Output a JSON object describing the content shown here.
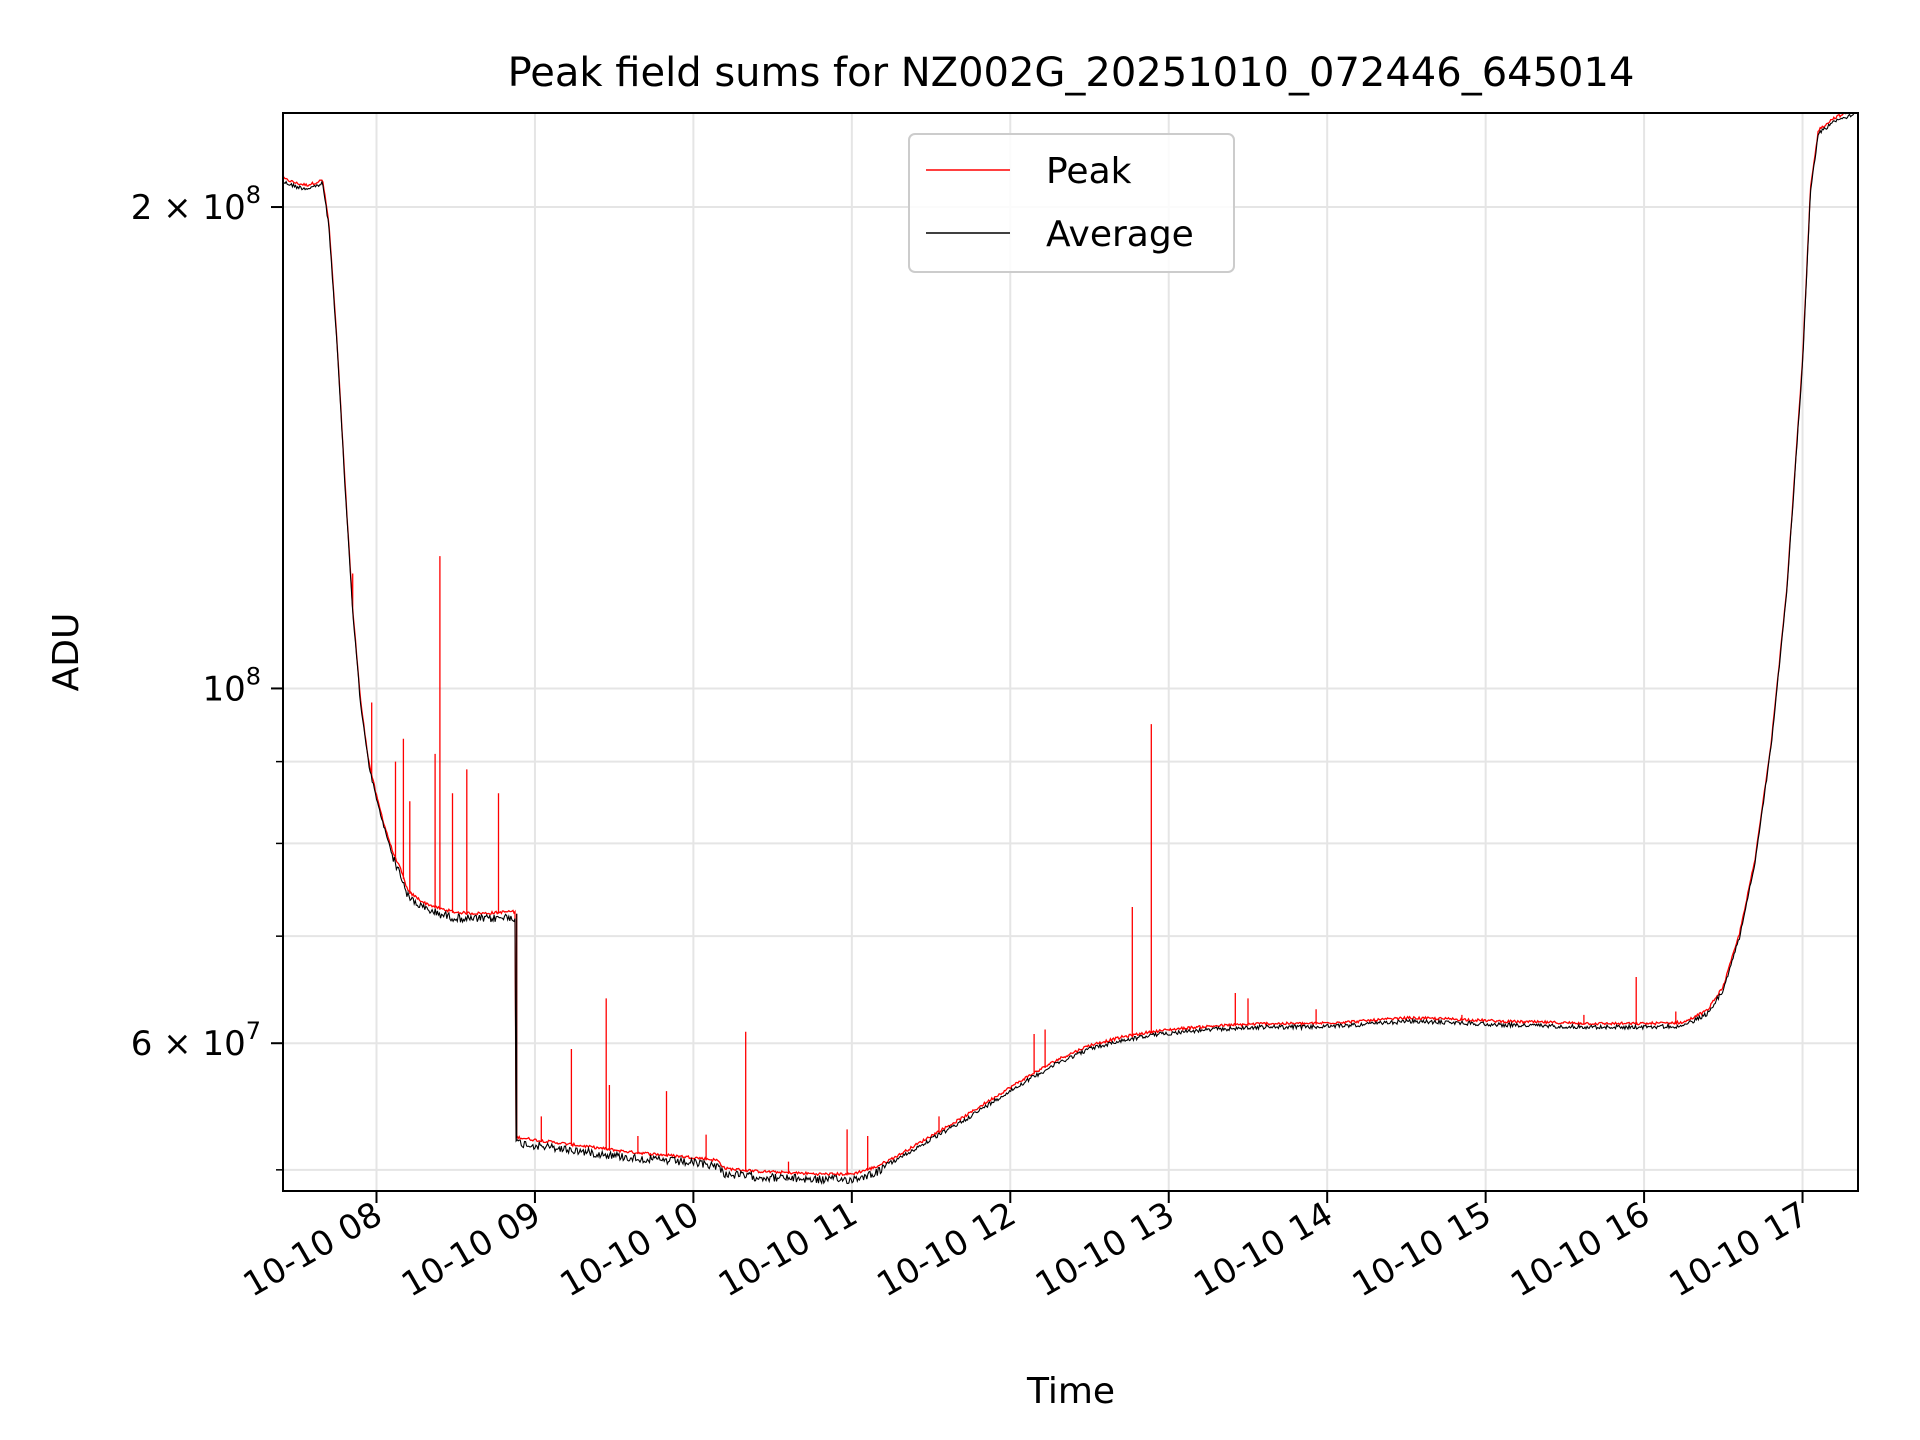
{
  "chart_data": {
    "type": "line",
    "title": "Peak field sums for NZ002G_20251010_072446_645014",
    "xlabel": "Time",
    "ylabel": "ADU",
    "yscale": "log",
    "xlim": [
      7.41,
      17.35
    ],
    "ylim": [
      48500000,
      229000000
    ],
    "grid": true,
    "legend_position": "upper-center",
    "colors": {
      "Peak": "#ff0000",
      "Average": "#000000",
      "grid": "#e5e5e5"
    },
    "x_ticks": [
      {
        "value": 8,
        "label": "10-10 08"
      },
      {
        "value": 9,
        "label": "10-10 09"
      },
      {
        "value": 10,
        "label": "10-10 10"
      },
      {
        "value": 11,
        "label": "10-10 11"
      },
      {
        "value": 12,
        "label": "10-10 12"
      },
      {
        "value": 13,
        "label": "10-10 13"
      },
      {
        "value": 14,
        "label": "10-10 14"
      },
      {
        "value": 15,
        "label": "10-10 15"
      },
      {
        "value": 16,
        "label": "10-10 16"
      },
      {
        "value": 17,
        "label": "10-10 17"
      }
    ],
    "y_major_ticks": [
      {
        "value": 100000000,
        "base": "10",
        "exp": "8",
        "prefix": ""
      },
      {
        "value": 200000000,
        "base": "10",
        "exp": "8",
        "prefix": "2 × "
      },
      {
        "value": 60000000,
        "base": "10",
        "exp": "7",
        "prefix": "6 × "
      }
    ],
    "y_minor_ticks": [
      50000000,
      70000000,
      80000000,
      90000000
    ],
    "baseline_points": [
      [
        7.41,
        208000000
      ],
      [
        7.5,
        206500000
      ],
      [
        7.56,
        206000000
      ],
      [
        7.62,
        206800000
      ],
      [
        7.66,
        207500000
      ],
      [
        7.7,
        195000000
      ],
      [
        7.75,
        165000000
      ],
      [
        7.8,
        135000000
      ],
      [
        7.85,
        112000000
      ],
      [
        7.9,
        98000000
      ],
      [
        7.95,
        90000000
      ],
      [
        8.0,
        85500000
      ],
      [
        8.05,
        82000000
      ],
      [
        8.1,
        79000000
      ],
      [
        8.15,
        77000000
      ],
      [
        8.2,
        74500000
      ],
      [
        8.3,
        73300000
      ],
      [
        8.4,
        72700000
      ],
      [
        8.5,
        72300000
      ],
      [
        8.6,
        72200000
      ],
      [
        8.7,
        72200000
      ],
      [
        8.85,
        72400000
      ],
      [
        8.88,
        72300000
      ],
      [
        8.89,
        52300000
      ],
      [
        9.0,
        52100000
      ],
      [
        9.2,
        51800000
      ],
      [
        9.4,
        51500000
      ],
      [
        9.6,
        51200000
      ],
      [
        9.8,
        51000000
      ],
      [
        10.0,
        50800000
      ],
      [
        10.15,
        50600000
      ],
      [
        10.2,
        50000000
      ],
      [
        10.4,
        49800000
      ],
      [
        10.6,
        49700000
      ],
      [
        10.8,
        49600000
      ],
      [
        11.0,
        49600000
      ],
      [
        11.15,
        50100000
      ],
      [
        11.3,
        51000000
      ],
      [
        11.5,
        52400000
      ],
      [
        11.7,
        53800000
      ],
      [
        11.9,
        55400000
      ],
      [
        12.1,
        57000000
      ],
      [
        12.3,
        58500000
      ],
      [
        12.5,
        59700000
      ],
      [
        12.7,
        60400000
      ],
      [
        12.9,
        60900000
      ],
      [
        13.1,
        61200000
      ],
      [
        13.3,
        61400000
      ],
      [
        13.6,
        61600000
      ],
      [
        13.9,
        61600000
      ],
      [
        14.2,
        61800000
      ],
      [
        14.5,
        62100000
      ],
      [
        14.8,
        62000000
      ],
      [
        15.1,
        61800000
      ],
      [
        15.4,
        61700000
      ],
      [
        15.7,
        61600000
      ],
      [
        16.0,
        61600000
      ],
      [
        16.25,
        61700000
      ],
      [
        16.4,
        62800000
      ],
      [
        16.5,
        65000000
      ],
      [
        16.6,
        70000000
      ],
      [
        16.7,
        78000000
      ],
      [
        16.8,
        92000000
      ],
      [
        16.9,
        115000000
      ],
      [
        17.0,
        160000000
      ],
      [
        17.05,
        205000000
      ],
      [
        17.1,
        223000000
      ],
      [
        17.2,
        227000000
      ],
      [
        17.3,
        229000000
      ],
      [
        17.35,
        230000000
      ]
    ],
    "peak_spikes": [
      [
        7.85,
        118000000
      ],
      [
        7.97,
        98000000
      ],
      [
        8.12,
        90000000
      ],
      [
        8.17,
        93000000
      ],
      [
        8.21,
        85000000
      ],
      [
        8.37,
        91000000
      ],
      [
        8.4,
        121000000
      ],
      [
        8.48,
        86000000
      ],
      [
        8.57,
        89000000
      ],
      [
        8.77,
        86000000
      ],
      [
        9.04,
        54000000
      ],
      [
        9.23,
        59500000
      ],
      [
        9.45,
        64000000
      ],
      [
        9.47,
        56500000
      ],
      [
        9.65,
        52500000
      ],
      [
        9.83,
        56000000
      ],
      [
        10.08,
        52600000
      ],
      [
        10.33,
        61000000
      ],
      [
        10.6,
        50600000
      ],
      [
        10.97,
        53000000
      ],
      [
        11.1,
        52500000
      ],
      [
        11.55,
        54000000
      ],
      [
        12.15,
        60800000
      ],
      [
        12.22,
        61200000
      ],
      [
        12.77,
        73000000
      ],
      [
        12.89,
        95000000
      ],
      [
        13.42,
        64500000
      ],
      [
        13.5,
        64000000
      ],
      [
        13.93,
        63000000
      ],
      [
        14.85,
        62500000
      ],
      [
        15.62,
        62500000
      ],
      [
        15.95,
        66000000
      ],
      [
        16.2,
        62800000
      ]
    ],
    "legend": [
      "Peak",
      "Average"
    ]
  }
}
